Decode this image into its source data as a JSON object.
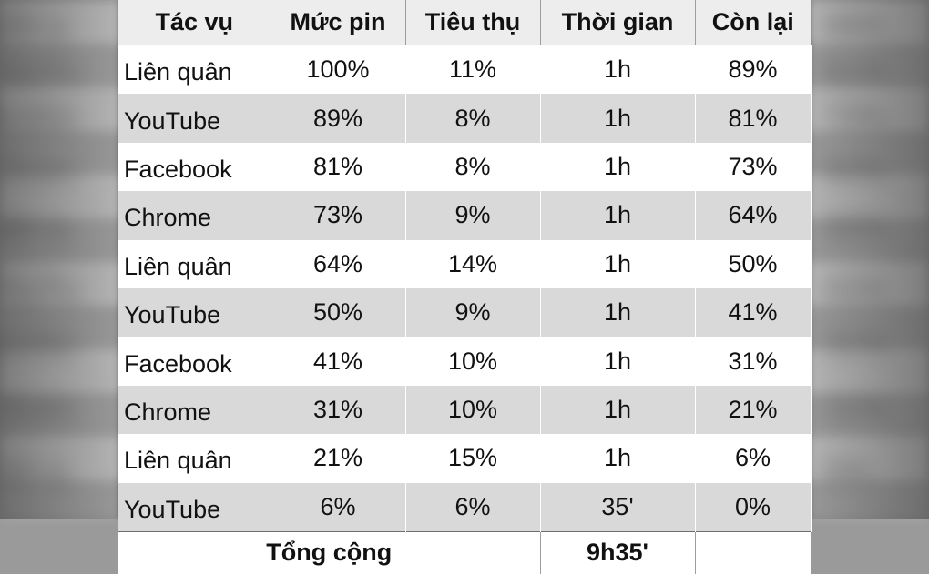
{
  "table": {
    "headers": [
      "Tác vụ",
      "Mức pin",
      "Tiêu thụ",
      "Thời gian",
      "Còn lại"
    ],
    "rows": [
      [
        "Liên quân",
        "100%",
        "11%",
        "1h",
        "89%"
      ],
      [
        "YouTube",
        "89%",
        "8%",
        "1h",
        "81%"
      ],
      [
        "Facebook",
        "81%",
        "8%",
        "1h",
        "73%"
      ],
      [
        "Chrome",
        "73%",
        "9%",
        "1h",
        "64%"
      ],
      [
        "Liên quân",
        "64%",
        "14%",
        "1h",
        "50%"
      ],
      [
        "YouTube",
        "50%",
        "9%",
        "1h",
        "41%"
      ],
      [
        "Facebook",
        "41%",
        "10%",
        "1h",
        "31%"
      ],
      [
        "Chrome",
        "31%",
        "10%",
        "1h",
        "21%"
      ],
      [
        "Liên quân",
        "21%",
        "15%",
        "1h",
        "6%"
      ],
      [
        "YouTube",
        "6%",
        "6%",
        "35'",
        "0%"
      ]
    ],
    "footer": {
      "label": "Tổng cộng",
      "total_time": "9h35'"
    }
  },
  "colors": {
    "header_bg": "#ededed",
    "stripe_bg": "#d9d9d9",
    "border": "#9d9d9d"
  }
}
